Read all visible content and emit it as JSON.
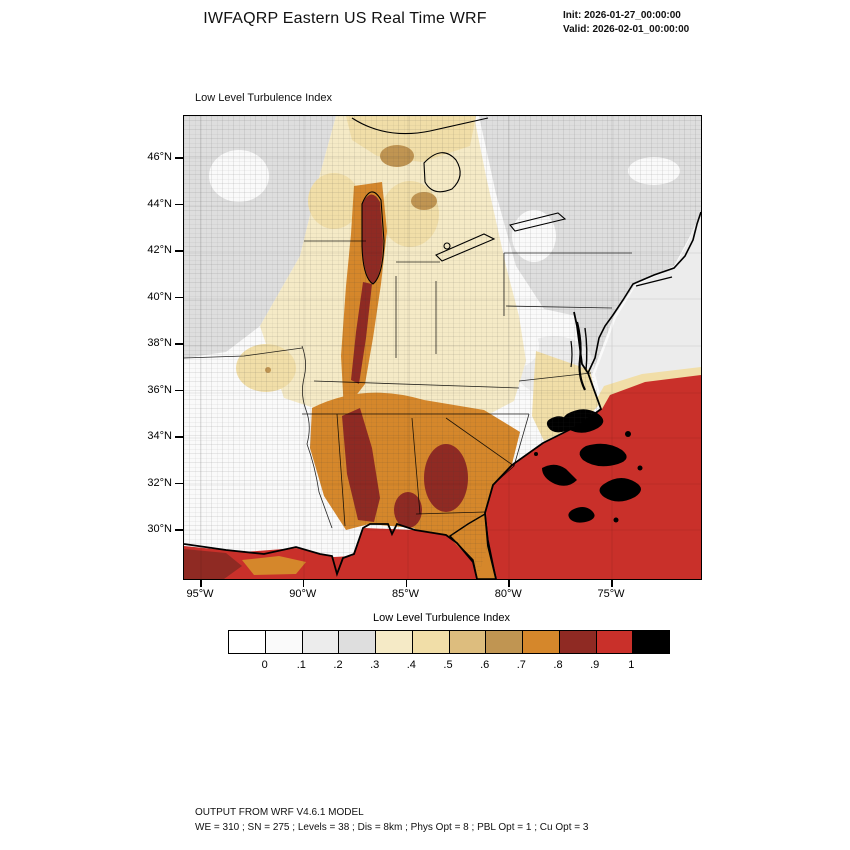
{
  "header": {
    "title": "IWFAQRP Eastern US Real Time WRF",
    "init_label": "Init: 2026-01-27_00:00:00",
    "valid_label": "Valid: 2026-02-01_00:00:00"
  },
  "map": {
    "title": "Low Level Turbulence Index",
    "lat_labels": [
      "46°N",
      "44°N",
      "42°N",
      "40°N",
      "38°N",
      "36°N",
      "34°N",
      "32°N",
      "30°N"
    ],
    "lon_labels": [
      "95°W",
      "90°W",
      "85°W",
      "80°W",
      "75°W"
    ]
  },
  "colorbar": {
    "title": "Low Level Turbulence Index",
    "tick_labels": [
      "0",
      ".1",
      ".2",
      ".3",
      ".4",
      ".5",
      ".6",
      ".7",
      ".8",
      ".9",
      "1"
    ],
    "colors": [
      "#FFFFFF",
      "#FAFAFA",
      "#ECECEC",
      "#DEDEDE",
      "#F5EAC6",
      "#F1DEA8",
      "#DDBD7E",
      "#C09552",
      "#D5872B",
      "#8F2A23",
      "#C9302A",
      "#000000"
    ]
  },
  "footer": {
    "line1": "OUTPUT FROM WRF V4.6.1 MODEL",
    "line2": "WE = 310 ; SN = 275 ; Levels = 38 ; Dis = 8km ; Phys Opt = 8 ; PBL Opt = 1 ; Cu Opt = 3"
  },
  "chart_data": {
    "type": "heatmap",
    "title": "Low Level Turbulence Index",
    "x_ticks": [
      "95°W",
      "90°W",
      "85°W",
      "80°W",
      "75°W"
    ],
    "y_ticks": [
      "46°N",
      "44°N",
      "42°N",
      "40°N",
      "38°N",
      "36°N",
      "34°N",
      "32°N",
      "30°N"
    ],
    "levels": [
      0,
      0.1,
      0.2,
      0.3,
      0.4,
      0.5,
      0.6,
      0.7,
      0.8,
      0.9,
      1
    ],
    "palette": [
      "#FFFFFF",
      "#FAFAFA",
      "#ECECEC",
      "#DEDEDE",
      "#F5EAC6",
      "#F1DEA8",
      "#DDBD7E",
      "#C09552",
      "#D5872B",
      "#8F2A23",
      "#C9302A",
      "#000000"
    ],
    "regions": [
      {
        "area": "Gulf of Mexico and Atlantic offshore Southeast US",
        "approx_value": "0.9-1"
      },
      {
        "area": "Scattered patches offshore the Carolinas",
        "approx_value": ">1"
      },
      {
        "area": "Alabama / Georgia / Tennessee corridor",
        "approx_value": "0.6-0.9"
      },
      {
        "area": "Lake Michigan and narrow band south through Kentucky",
        "approx_value": "0.7-0.9"
      },
      {
        "area": "Ohio Valley / upper Midwest interior",
        "approx_value": "0.3-0.5"
      },
      {
        "area": "Northeast US, Appalachians, upper Great Lakes fringe",
        "approx_value": "0-0.3"
      }
    ]
  }
}
